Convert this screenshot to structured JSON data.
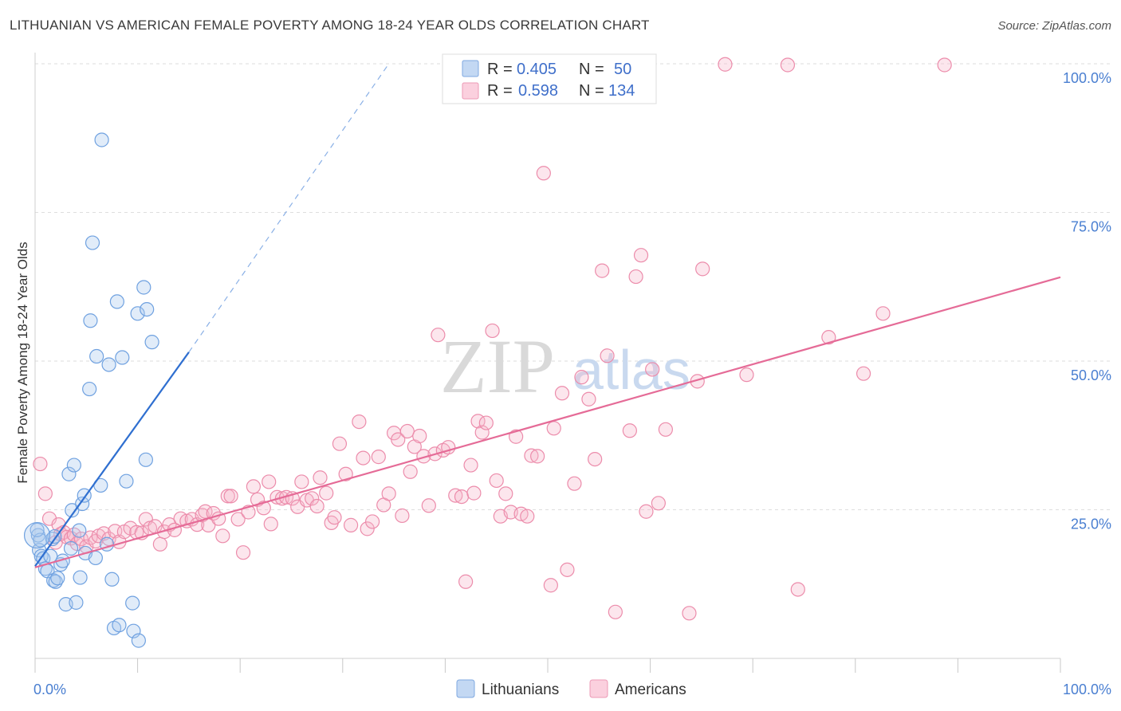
{
  "header": {
    "title": "LITHUANIAN VS AMERICAN FEMALE POVERTY AMONG 18-24 YEAR OLDS CORRELATION CHART",
    "source": "Source: ZipAtlas.com"
  },
  "watermark": {
    "zip": "ZIP",
    "atlas": "atlas"
  },
  "legend_box": {
    "rows": [
      {
        "r_label": "R =",
        "r_value": "0.405",
        "n_label": "N =",
        "n_value": "50",
        "color": "#a9c8ef"
      },
      {
        "r_label": "R =",
        "r_value": "0.598",
        "n_label": "N =",
        "n_value": "134",
        "color": "#f7b6cb"
      }
    ]
  },
  "bottom_legend": [
    {
      "label": "Lithuanians",
      "color": "#a9c8ef"
    },
    {
      "label": "Americans",
      "color": "#f7b6cb"
    }
  ],
  "chart_data": {
    "type": "scatter",
    "title": "LITHUANIAN VS AMERICAN FEMALE POVERTY AMONG 18-24 YEAR OLDS CORRELATION CHART",
    "xlabel": "",
    "ylabel": "Female Poverty Among 18-24 Year Olds",
    "xlim": [
      0,
      100
    ],
    "ylim": [
      0,
      100
    ],
    "x_tick_labels": [
      {
        "value": 0,
        "label": "0.0%"
      },
      {
        "value": 100,
        "label": "100.0%"
      }
    ],
    "y_tick_labels": [
      {
        "value": 25,
        "label": "25.0%"
      },
      {
        "value": 50,
        "label": "50.0%"
      },
      {
        "value": 75,
        "label": "75.0%"
      },
      {
        "value": 100,
        "label": "100.0%"
      }
    ],
    "grid": true,
    "legend_position": "top-center",
    "colors": {
      "lithuanians": "#6fa1e0",
      "americans": "#ec8cab",
      "lith_line": "#2f6fd0",
      "amer_line": "#e56b97"
    },
    "series": [
      {
        "name": "Lithuanians",
        "points": [
          [
            0.3,
            20.7
          ],
          [
            0.4,
            18.2
          ],
          [
            0.5,
            19.9
          ],
          [
            0.6,
            17.2
          ],
          [
            0.8,
            16.8
          ],
          [
            1.0,
            15.1
          ],
          [
            1.2,
            14.7
          ],
          [
            1.5,
            17.2
          ],
          [
            1.7,
            20.1
          ],
          [
            1.8,
            13.1
          ],
          [
            2.0,
            12.9
          ],
          [
            2.2,
            13.5
          ],
          [
            2.5,
            15.8
          ],
          [
            2.7,
            16.4
          ],
          [
            3.0,
            9.1
          ],
          [
            3.3,
            31.0
          ],
          [
            3.5,
            18.5
          ],
          [
            3.6,
            24.9
          ],
          [
            3.8,
            32.5
          ],
          [
            4.0,
            9.4
          ],
          [
            4.3,
            21.5
          ],
          [
            4.4,
            13.6
          ],
          [
            4.6,
            26.0
          ],
          [
            4.8,
            27.4
          ],
          [
            4.9,
            17.7
          ],
          [
            5.3,
            45.3
          ],
          [
            5.4,
            56.8
          ],
          [
            5.6,
            69.9
          ],
          [
            5.9,
            16.9
          ],
          [
            6.0,
            50.8
          ],
          [
            6.4,
            29.1
          ],
          [
            6.5,
            87.2
          ],
          [
            7.0,
            19.2
          ],
          [
            7.2,
            49.4
          ],
          [
            7.5,
            13.3
          ],
          [
            7.7,
            5.1
          ],
          [
            8.0,
            60.0
          ],
          [
            8.2,
            5.6
          ],
          [
            8.5,
            50.6
          ],
          [
            8.9,
            29.8
          ],
          [
            9.5,
            9.3
          ],
          [
            9.6,
            4.6
          ],
          [
            10.0,
            58.0
          ],
          [
            10.1,
            3.0
          ],
          [
            10.6,
            62.4
          ],
          [
            10.8,
            33.4
          ],
          [
            10.9,
            58.7
          ],
          [
            11.4,
            53.2
          ],
          [
            0.2,
            21.6
          ],
          [
            1.9,
            20.5
          ]
        ]
      },
      {
        "name": "Americans",
        "points": [
          [
            0.5,
            32.7
          ],
          [
            1.0,
            27.7
          ],
          [
            1.4,
            23.5
          ],
          [
            2.0,
            19.5
          ],
          [
            2.3,
            22.5
          ],
          [
            2.5,
            20.9
          ],
          [
            2.8,
            21.2
          ],
          [
            3.1,
            20.4
          ],
          [
            3.5,
            20.2
          ],
          [
            3.8,
            20.8
          ],
          [
            4.1,
            19.3
          ],
          [
            4.5,
            20.1
          ],
          [
            5.0,
            18.8
          ],
          [
            5.4,
            20.3
          ],
          [
            5.9,
            19.7
          ],
          [
            6.2,
            20.6
          ],
          [
            6.7,
            21.0
          ],
          [
            7.2,
            20.1
          ],
          [
            7.8,
            21.4
          ],
          [
            8.2,
            19.6
          ],
          [
            8.7,
            21.3
          ],
          [
            9.3,
            21.9
          ],
          [
            9.9,
            21.2
          ],
          [
            10.4,
            21.1
          ],
          [
            10.8,
            23.4
          ],
          [
            11.2,
            21.9
          ],
          [
            11.7,
            22.2
          ],
          [
            12.2,
            19.2
          ],
          [
            12.6,
            21.3
          ],
          [
            13.1,
            22.5
          ],
          [
            13.6,
            21.6
          ],
          [
            14.2,
            23.5
          ],
          [
            14.8,
            23.1
          ],
          [
            15.3,
            23.4
          ],
          [
            15.8,
            22.5
          ],
          [
            16.3,
            24.1
          ],
          [
            16.6,
            24.7
          ],
          [
            16.9,
            22.4
          ],
          [
            17.4,
            24.4
          ],
          [
            17.9,
            23.5
          ],
          [
            18.3,
            20.6
          ],
          [
            18.8,
            27.3
          ],
          [
            19.1,
            27.3
          ],
          [
            19.8,
            23.4
          ],
          [
            20.3,
            17.8
          ],
          [
            20.8,
            24.6
          ],
          [
            21.3,
            28.9
          ],
          [
            21.7,
            26.7
          ],
          [
            22.3,
            25.3
          ],
          [
            22.8,
            29.7
          ],
          [
            23.0,
            22.6
          ],
          [
            23.6,
            27.1
          ],
          [
            24.1,
            26.9
          ],
          [
            24.5,
            27.1
          ],
          [
            25.1,
            26.9
          ],
          [
            25.6,
            25.5
          ],
          [
            26.0,
            29.7
          ],
          [
            26.5,
            26.6
          ],
          [
            27.0,
            26.9
          ],
          [
            27.5,
            25.6
          ],
          [
            27.8,
            30.4
          ],
          [
            28.4,
            27.8
          ],
          [
            28.9,
            22.8
          ],
          [
            29.2,
            23.7
          ],
          [
            29.7,
            36.1
          ],
          [
            30.3,
            31.0
          ],
          [
            30.8,
            22.4
          ],
          [
            31.6,
            39.8
          ],
          [
            32.0,
            33.7
          ],
          [
            32.4,
            21.8
          ],
          [
            32.9,
            23.0
          ],
          [
            33.5,
            33.9
          ],
          [
            34.0,
            25.8
          ],
          [
            34.5,
            27.7
          ],
          [
            35.0,
            37.9
          ],
          [
            35.4,
            36.8
          ],
          [
            35.8,
            24.0
          ],
          [
            36.3,
            38.2
          ],
          [
            36.6,
            31.4
          ],
          [
            37.0,
            35.6
          ],
          [
            37.5,
            37.4
          ],
          [
            37.9,
            34.0
          ],
          [
            38.4,
            25.7
          ],
          [
            39.0,
            34.4
          ],
          [
            39.3,
            54.4
          ],
          [
            39.8,
            35.0
          ],
          [
            40.3,
            35.5
          ],
          [
            41.0,
            27.4
          ],
          [
            41.6,
            27.2
          ],
          [
            42.0,
            12.9
          ],
          [
            42.5,
            32.5
          ],
          [
            42.8,
            27.8
          ],
          [
            43.2,
            39.9
          ],
          [
            43.6,
            38.0
          ],
          [
            44.0,
            39.6
          ],
          [
            44.6,
            55.1
          ],
          [
            45.0,
            29.9
          ],
          [
            45.4,
            23.9
          ],
          [
            45.9,
            27.7
          ],
          [
            46.4,
            24.6
          ],
          [
            46.9,
            37.3
          ],
          [
            47.4,
            24.3
          ],
          [
            48.0,
            23.9
          ],
          [
            48.4,
            34.1
          ],
          [
            49.0,
            34.0
          ],
          [
            49.6,
            81.6
          ],
          [
            50.3,
            12.3
          ],
          [
            50.6,
            38.7
          ],
          [
            51.4,
            44.6
          ],
          [
            51.9,
            14.9
          ],
          [
            52.6,
            29.4
          ],
          [
            53.3,
            47.3
          ],
          [
            54.0,
            43.6
          ],
          [
            54.6,
            33.5
          ],
          [
            55.3,
            65.2
          ],
          [
            55.8,
            50.9
          ],
          [
            56.6,
            7.8
          ],
          [
            57.3,
            99.9
          ],
          [
            58.0,
            38.3
          ],
          [
            58.6,
            64.2
          ],
          [
            59.1,
            67.8
          ],
          [
            59.6,
            24.7
          ],
          [
            60.2,
            48.6
          ],
          [
            60.8,
            26.1
          ],
          [
            61.5,
            38.5
          ],
          [
            63.8,
            7.6
          ],
          [
            64.6,
            46.6
          ],
          [
            65.1,
            65.5
          ],
          [
            67.3,
            99.9
          ],
          [
            69.4,
            47.7
          ],
          [
            73.4,
            99.8
          ],
          [
            74.4,
            11.6
          ],
          [
            77.4,
            54.0
          ],
          [
            80.8,
            47.9
          ],
          [
            82.7,
            58.0
          ],
          [
            88.7,
            99.8
          ]
        ]
      }
    ],
    "trendlines": [
      {
        "series": "Lithuanians",
        "x": [
          0,
          15.0
        ],
        "y": [
          15.5,
          51.5
        ],
        "dashed_extension_to": [
          34.5,
          100
        ]
      },
      {
        "series": "Americans",
        "x": [
          0,
          100
        ],
        "y": [
          15.3,
          64.1
        ]
      }
    ]
  }
}
